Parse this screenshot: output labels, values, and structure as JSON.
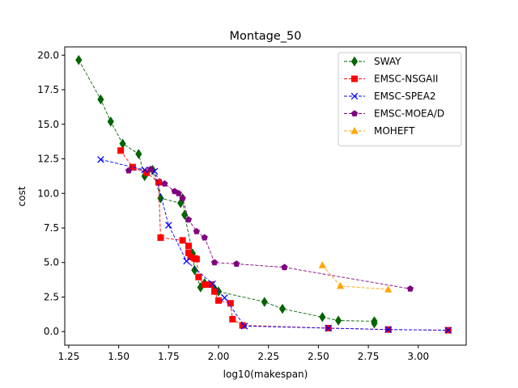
{
  "chart_data": {
    "type": "line",
    "title": "Montage_50",
    "xlabel": "log10(makespan)",
    "ylabel": "cost",
    "xlim": [
      1.23,
      3.24
    ],
    "ylim": [
      -0.98,
      20.6
    ],
    "xticks": [
      "1.25",
      "1.50",
      "1.75",
      "2.00",
      "2.25",
      "2.50",
      "2.75",
      "3.00"
    ],
    "xtick_values": [
      1.25,
      1.5,
      1.75,
      2.0,
      2.25,
      2.5,
      2.75,
      3.0
    ],
    "yticks": [
      "0.0",
      "2.5",
      "5.0",
      "7.5",
      "10.0",
      "12.5",
      "15.0",
      "17.5",
      "20.0"
    ],
    "ytick_values": [
      0,
      2.5,
      5,
      7.5,
      10,
      12.5,
      15,
      17.5,
      20
    ],
    "grid": false,
    "legend_position": "top-right",
    "series": [
      {
        "name": "SWAY",
        "color": "#006400",
        "marker": "diamond",
        "points": [
          [
            1.3,
            19.65
          ],
          [
            1.41,
            16.8
          ],
          [
            1.46,
            15.2
          ],
          [
            1.52,
            13.6
          ],
          [
            1.6,
            12.85
          ],
          [
            1.63,
            11.25
          ],
          [
            1.67,
            11.7
          ],
          [
            1.71,
            9.65
          ],
          [
            1.81,
            9.3
          ],
          [
            1.82,
            9.65
          ],
          [
            1.83,
            8.45
          ],
          [
            1.87,
            5.65
          ],
          [
            1.88,
            4.45
          ],
          [
            1.91,
            3.2
          ],
          [
            1.93,
            3.5
          ],
          [
            1.98,
            3.1
          ],
          [
            2.0,
            2.9
          ],
          [
            2.23,
            2.15
          ],
          [
            2.32,
            1.65
          ],
          [
            2.52,
            1.05
          ],
          [
            2.6,
            0.8
          ],
          [
            2.78,
            0.75
          ],
          [
            2.78,
            0.6
          ]
        ]
      },
      {
        "name": "EMSC-NSGAII",
        "color": "#ff0000",
        "marker": "square",
        "points": [
          [
            1.51,
            13.1
          ],
          [
            1.57,
            11.9
          ],
          [
            1.64,
            11.5
          ],
          [
            1.7,
            10.8
          ],
          [
            1.71,
            6.8
          ],
          [
            1.82,
            6.6
          ],
          [
            1.85,
            6.2
          ],
          [
            1.85,
            5.7
          ],
          [
            1.86,
            5.4
          ],
          [
            1.88,
            5.3
          ],
          [
            1.89,
            5.25
          ],
          [
            1.9,
            3.95
          ],
          [
            1.93,
            3.4
          ],
          [
            1.96,
            3.4
          ],
          [
            1.98,
            2.9
          ],
          [
            2.0,
            2.25
          ],
          [
            2.06,
            2.05
          ],
          [
            2.07,
            0.9
          ],
          [
            2.12,
            0.45
          ],
          [
            2.55,
            0.25
          ],
          [
            2.85,
            0.15
          ],
          [
            3.15,
            0.1
          ]
        ]
      },
      {
        "name": "EMSC-SPEA2",
        "color": "#0000ff",
        "marker": "x",
        "points": [
          [
            1.41,
            12.45
          ],
          [
            1.63,
            11.7
          ],
          [
            1.68,
            11.6
          ],
          [
            1.75,
            7.7
          ],
          [
            1.84,
            5.1
          ],
          [
            1.97,
            3.45
          ],
          [
            2.03,
            2.45
          ],
          [
            2.13,
            0.4
          ],
          [
            2.55,
            0.25
          ],
          [
            2.85,
            0.15
          ],
          [
            3.15,
            0.1
          ]
        ]
      },
      {
        "name": "EMSC-MOEA/D",
        "color": "#800080",
        "marker": "pentagon",
        "points": [
          [
            1.55,
            11.65
          ],
          [
            1.66,
            11.75
          ],
          [
            1.73,
            10.7
          ],
          [
            1.78,
            10.15
          ],
          [
            1.8,
            10.0
          ],
          [
            1.82,
            9.65
          ],
          [
            1.85,
            8.1
          ],
          [
            1.89,
            7.25
          ],
          [
            1.93,
            6.8
          ],
          [
            1.98,
            5.0
          ],
          [
            2.09,
            4.9
          ],
          [
            2.33,
            4.65
          ],
          [
            2.96,
            3.1
          ]
        ]
      },
      {
        "name": "MOHEFT",
        "color": "#ffa500",
        "marker": "triangle",
        "points": [
          [
            2.52,
            4.8
          ],
          [
            2.61,
            3.3
          ],
          [
            2.85,
            3.05
          ]
        ]
      }
    ]
  }
}
